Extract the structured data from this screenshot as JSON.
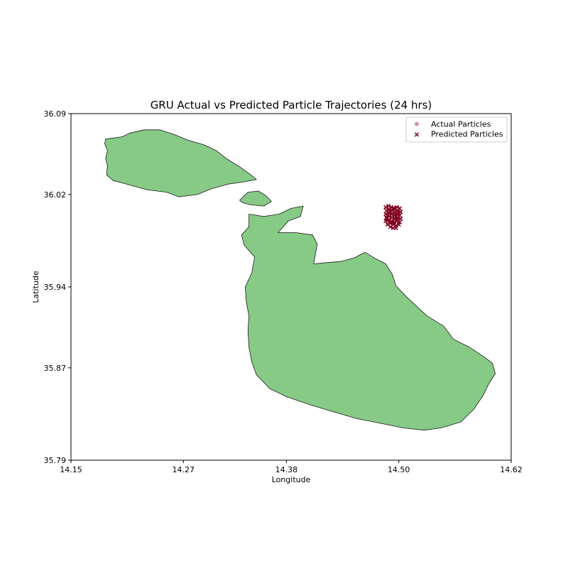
{
  "chart_data": {
    "type": "scatter",
    "title": "GRU Actual vs Predicted Particle Trajectories (24 hrs)",
    "xlabel": "Longitude",
    "ylabel": "Latitude",
    "xlim": [
      14.15,
      14.62
    ],
    "ylim": [
      35.79,
      36.09
    ],
    "xticks": [
      14.15,
      14.27,
      14.38,
      14.5,
      14.62
    ],
    "xtick_labels": [
      "14.15",
      "14.27",
      "14.38",
      "14.50",
      "14.62"
    ],
    "yticks": [
      35.79,
      35.87,
      35.94,
      36.02,
      36.09
    ],
    "ytick_labels": [
      "35.79",
      "35.87",
      "35.94",
      "36.02",
      "36.09"
    ],
    "grid": false,
    "legend_position": "top-right",
    "series": [
      {
        "name": "Actual Particles",
        "marker": "circle",
        "color": "#d4949e",
        "points": []
      },
      {
        "name": "Predicted Particles",
        "marker": "x",
        "color": "#800020",
        "points": [
          [
            14.486,
            36.009
          ],
          [
            14.489,
            36.01
          ],
          [
            14.492,
            36.009
          ],
          [
            14.495,
            36.008
          ],
          [
            14.498,
            36.009
          ],
          [
            14.501,
            36.008
          ],
          [
            14.487,
            36.006
          ],
          [
            14.49,
            36.007
          ],
          [
            14.493,
            36.006
          ],
          [
            14.496,
            36.005
          ],
          [
            14.499,
            36.006
          ],
          [
            14.502,
            36.005
          ],
          [
            14.486,
            36.003
          ],
          [
            14.489,
            36.004
          ],
          [
            14.492,
            36.003
          ],
          [
            14.495,
            36.002
          ],
          [
            14.498,
            36.003
          ],
          [
            14.501,
            36.002
          ],
          [
            14.487,
            36.0
          ],
          [
            14.49,
            36.001
          ],
          [
            14.493,
            36.0
          ],
          [
            14.496,
            35.999
          ],
          [
            14.499,
            36.0
          ],
          [
            14.502,
            35.999
          ],
          [
            14.486,
            35.997
          ],
          [
            14.489,
            35.998
          ],
          [
            14.492,
            35.997
          ],
          [
            14.495,
            35.996
          ],
          [
            14.498,
            35.997
          ],
          [
            14.501,
            35.996
          ],
          [
            14.488,
            35.994
          ],
          [
            14.491,
            35.995
          ],
          [
            14.494,
            35.994
          ],
          [
            14.497,
            35.993
          ],
          [
            14.5,
            35.994
          ],
          [
            14.491,
            35.992
          ],
          [
            14.494,
            35.991
          ],
          [
            14.497,
            35.991
          ],
          [
            14.488,
            36.002
          ],
          [
            14.496,
            36.003
          ],
          [
            14.491,
            36.005
          ],
          [
            14.499,
            35.998
          ],
          [
            14.493,
            35.996
          ],
          [
            14.5,
            36.004
          ],
          [
            14.487,
            35.999
          ],
          [
            14.494,
            36.008
          ],
          [
            14.497,
            36.001
          ],
          [
            14.49,
            35.996
          ]
        ]
      }
    ],
    "land_color": "#86ca86",
    "land_edge_color": "#1a1a1a",
    "islands": [
      {
        "name": "Gozo",
        "outline": [
          [
            14.187,
            36.068
          ],
          [
            14.205,
            36.07
          ],
          [
            14.212,
            36.073
          ],
          [
            14.228,
            36.076
          ],
          [
            14.245,
            36.076
          ],
          [
            14.26,
            36.072
          ],
          [
            14.275,
            36.067
          ],
          [
            14.292,
            36.063
          ],
          [
            14.305,
            36.058
          ],
          [
            14.316,
            36.051
          ],
          [
            14.33,
            36.044
          ],
          [
            14.342,
            36.037
          ],
          [
            14.348,
            36.033
          ],
          [
            14.335,
            36.031
          ],
          [
            14.318,
            36.029
          ],
          [
            14.3,
            36.025
          ],
          [
            14.285,
            36.02
          ],
          [
            14.265,
            36.018
          ],
          [
            14.252,
            36.022
          ],
          [
            14.232,
            36.024
          ],
          [
            14.218,
            36.027
          ],
          [
            14.205,
            36.03
          ],
          [
            14.195,
            36.032
          ],
          [
            14.188,
            36.037
          ],
          [
            14.189,
            36.045
          ],
          [
            14.187,
            36.051
          ],
          [
            14.189,
            36.058
          ],
          [
            14.186,
            36.064
          ]
        ]
      },
      {
        "name": "Comino",
        "outline": [
          [
            14.33,
            36.015
          ],
          [
            14.339,
            36.022
          ],
          [
            14.35,
            36.023
          ],
          [
            14.358,
            36.019
          ],
          [
            14.364,
            36.014
          ],
          [
            14.356,
            36.01
          ],
          [
            14.342,
            36.011
          ],
          [
            14.333,
            36.013
          ]
        ]
      },
      {
        "name": "Malta",
        "outline": [
          [
            14.34,
            36.003
          ],
          [
            14.356,
            36.001
          ],
          [
            14.372,
            36.003
          ],
          [
            14.385,
            36.008
          ],
          [
            14.398,
            36.01
          ],
          [
            14.395,
            36.001
          ],
          [
            14.382,
            35.997
          ],
          [
            14.371,
            35.987
          ],
          [
            14.39,
            35.987
          ],
          [
            14.408,
            35.985
          ],
          [
            14.413,
            35.977
          ],
          [
            14.409,
            35.96
          ],
          [
            14.423,
            35.961
          ],
          [
            14.438,
            35.962
          ],
          [
            14.452,
            35.965
          ],
          [
            14.464,
            35.97
          ],
          [
            14.474,
            35.965
          ],
          [
            14.486,
            35.96
          ],
          [
            14.493,
            35.951
          ],
          [
            14.497,
            35.941
          ],
          [
            14.51,
            35.93
          ],
          [
            14.53,
            35.915
          ],
          [
            14.548,
            35.906
          ],
          [
            14.558,
            35.895
          ],
          [
            14.575,
            35.888
          ],
          [
            14.59,
            35.88
          ],
          [
            14.6,
            35.874
          ],
          [
            14.603,
            35.865
          ],
          [
            14.596,
            35.856
          ],
          [
            14.59,
            35.846
          ],
          [
            14.58,
            35.834
          ],
          [
            14.566,
            35.823
          ],
          [
            14.545,
            35.818
          ],
          [
            14.527,
            35.816
          ],
          [
            14.505,
            35.818
          ],
          [
            14.48,
            35.822
          ],
          [
            14.455,
            35.826
          ],
          [
            14.43,
            35.832
          ],
          [
            14.405,
            35.838
          ],
          [
            14.38,
            35.845
          ],
          [
            14.362,
            35.852
          ],
          [
            14.348,
            35.864
          ],
          [
            14.343,
            35.875
          ],
          [
            14.34,
            35.888
          ],
          [
            14.339,
            35.902
          ],
          [
            14.34,
            35.915
          ],
          [
            14.337,
            35.928
          ],
          [
            14.336,
            35.94
          ],
          [
            14.343,
            35.952
          ],
          [
            14.346,
            35.966
          ],
          [
            14.335,
            35.976
          ],
          [
            14.332,
            35.985
          ],
          [
            14.34,
            35.992
          ]
        ]
      }
    ]
  }
}
